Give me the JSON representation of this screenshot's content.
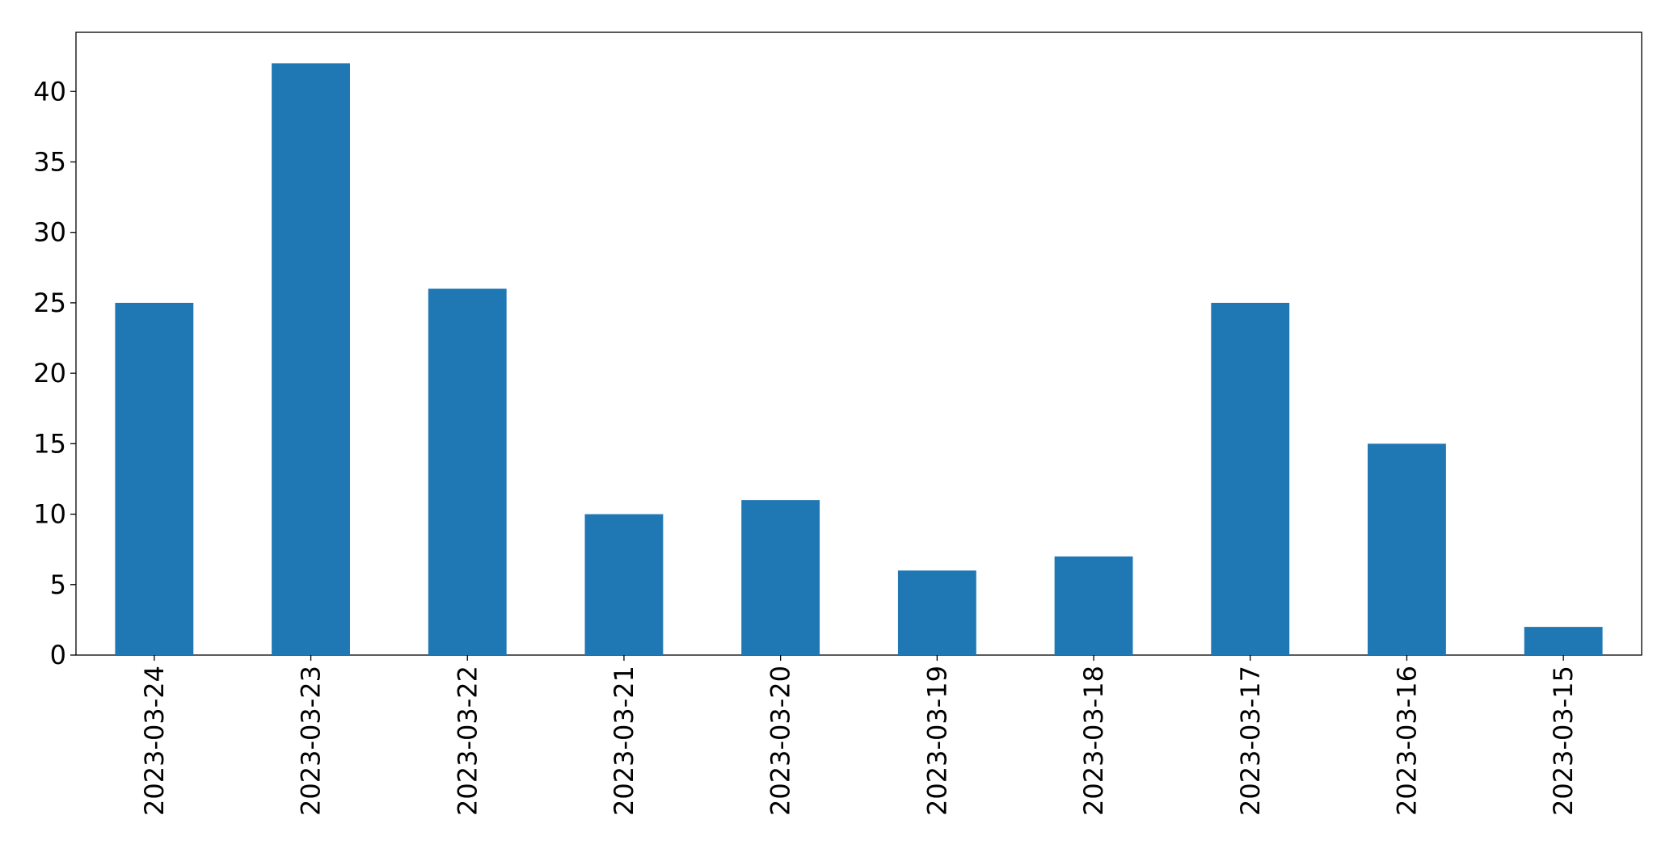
{
  "chart_data": {
    "type": "bar",
    "categories": [
      "2023-03-24",
      "2023-03-23",
      "2023-03-22",
      "2023-03-21",
      "2023-03-20",
      "2023-03-19",
      "2023-03-18",
      "2023-03-17",
      "2023-03-16",
      "2023-03-15"
    ],
    "values": [
      25,
      42,
      26,
      10,
      11,
      6,
      7,
      25,
      15,
      2
    ],
    "color": "#1f77b4",
    "ylim": [
      0,
      44.2
    ],
    "yticks": [
      0,
      5,
      10,
      15,
      20,
      25,
      30,
      35,
      40
    ],
    "grid": false
  }
}
